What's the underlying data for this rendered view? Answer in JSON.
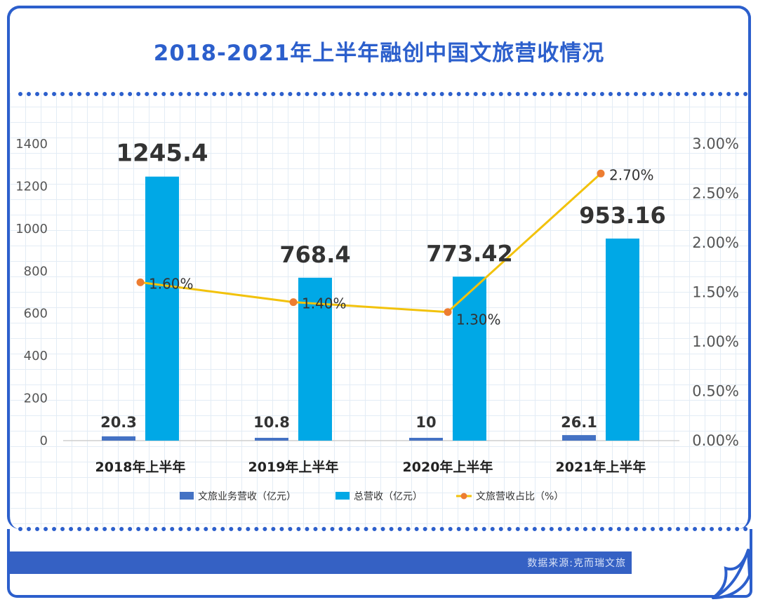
{
  "chart_data": {
    "type": "bar",
    "title": "2018-2021年上半年融创中国文旅营收情况",
    "categories": [
      "2018年上半年",
      "2019年上半年",
      "2020年上半年",
      "2021年上半年"
    ],
    "series": [
      {
        "name": "文旅业务营收（亿元）",
        "type": "bar",
        "axis": "left",
        "color": "#4472c4",
        "values": [
          20.3,
          10.8,
          10,
          26.1
        ],
        "labels": [
          "20.3",
          "10.8",
          "10",
          "26.1"
        ]
      },
      {
        "name": "总营收（亿元）",
        "type": "bar",
        "axis": "left",
        "color": "#00a8e6",
        "values": [
          1245.4,
          768.4,
          773.42,
          953.16
        ],
        "labels": [
          "1245.4",
          "768.4",
          "773.42",
          "953.16"
        ]
      },
      {
        "name": "文旅营收占比（%）",
        "type": "line",
        "axis": "right",
        "color": "#f2c20c",
        "marker_color": "#ed7d31",
        "values": [
          1.6,
          1.4,
          1.3,
          2.7
        ],
        "labels": [
          "1.60%",
          "1.40%",
          "1.30%",
          "2.70%"
        ]
      }
    ],
    "ylim": [
      0,
      1400
    ],
    "yticks": [
      "0",
      "200",
      "400",
      "600",
      "800",
      "1000",
      "1200",
      "1400"
    ],
    "y2lim": [
      0,
      3
    ],
    "y2ticks": [
      "0.00%",
      "0.50%",
      "1.00%",
      "1.50%",
      "2.00%",
      "2.50%",
      "3.00%"
    ],
    "legend": "bottom",
    "grid": true
  },
  "source": "数据来源:克而瑞文旅"
}
